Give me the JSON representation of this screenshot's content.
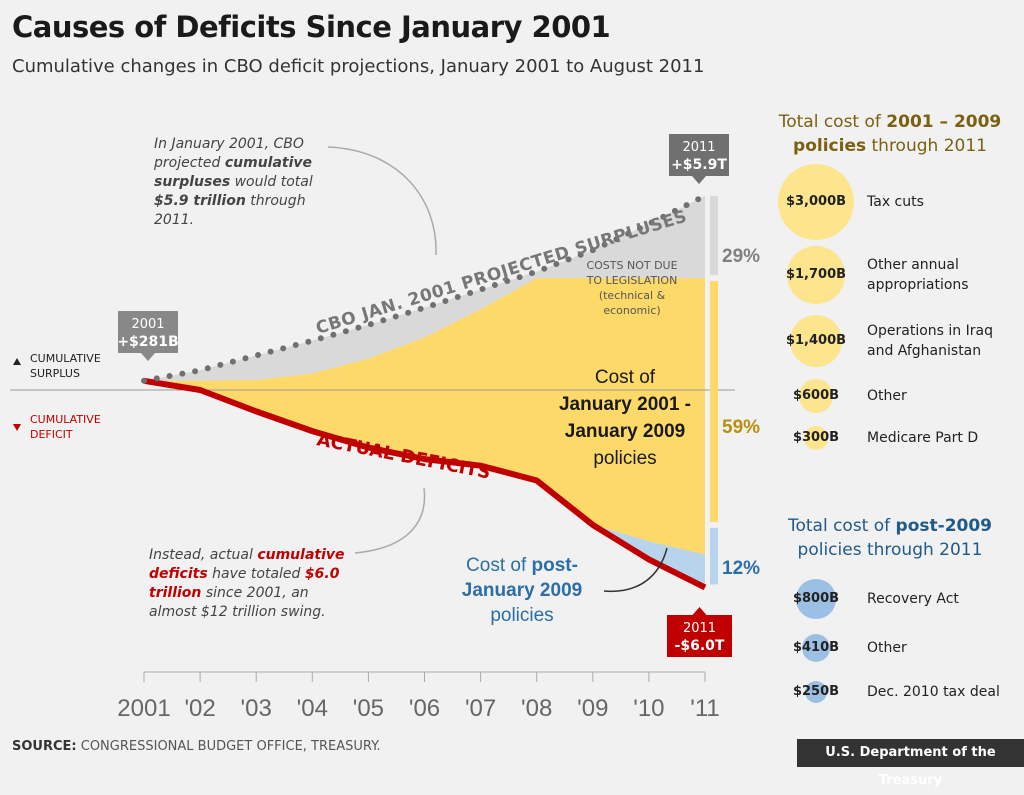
{
  "header": {
    "title": "Causes of Deficits Since January 2001",
    "subtitle": "Cumulative changes in CBO deficit projections, January 2001 to August 2011"
  },
  "footer": {
    "source_label": "SOURCE:",
    "source_text": "CONGRESSIONAL BUDGET OFFICE, TREASURY.",
    "org": "U.S. Department of the Treasury"
  },
  "colors": {
    "surplus_gray": "#d9d9d9",
    "gold": "#fcd969",
    "blue": "#b8d3ec",
    "red": "#c00000",
    "dots": "#707070",
    "bubble_gold": "#fde58e",
    "bubble_blue": "#9cc0e3"
  },
  "notes": {
    "top_lines": [
      "In January 2001, CBO",
      "projected {cumulative}",
      "{surpluses} would total",
      "{$5.9 trillion} through",
      "2011."
    ],
    "bottom_lines": [
      "Instead, actual {cumulative}",
      "{deficits} have totaled {$6.0}",
      "{trillion} since 2001, an",
      "almost $12 trillion swing."
    ]
  },
  "chart_data": {
    "type": "area",
    "x": [
      "2001",
      "'02",
      "'03",
      "'04",
      "'05",
      "'06",
      "'07",
      "'08",
      "'09",
      "'10",
      "'11"
    ],
    "series": [
      {
        "name": "CBO JAN. 2001 PROJECTED SURPLUSES",
        "values": [
          0.28,
          0.6,
          1.05,
          1.5,
          1.98,
          2.5,
          3.05,
          3.6,
          4.25,
          5.05,
          5.9
        ]
      },
      {
        "name": "ACTUAL DEFICITS",
        "values": [
          0.28,
          0.0,
          -0.65,
          -1.25,
          -1.75,
          -2.1,
          -2.3,
          -2.75,
          -4.1,
          -5.15,
          -6.0
        ]
      }
    ],
    "gold_top": [
      0.28,
      0.28,
      0.3,
      0.5,
      0.95,
      1.6,
      2.45,
      3.4,
      3.4,
      3.4,
      3.4
    ],
    "blue_top": [
      -4.1,
      -4.1,
      -4.1,
      -4.1,
      -4.1,
      -4.1,
      -4.1,
      -4.1,
      -4.1,
      -4.6,
      -5.0
    ],
    "ylim": [
      -6.5,
      6.5
    ],
    "start_label": {
      "year": "2001",
      "value": "+$281B"
    },
    "end_surplus_label": {
      "year": "2011",
      "value": "+$5.9T"
    },
    "end_deficit_label": {
      "year": "2011",
      "value": "-$6.0T"
    },
    "axis_labels": {
      "surplus": "CUMULATIVE SURPLUS",
      "deficit": "CUMULATIVE DEFICIT"
    },
    "series_labels": {
      "projected": "CBO JAN. 2001 PROJECTED SURPLUSES",
      "actual": "ACTUAL DEFICITS"
    },
    "costs_not_due": [
      "COSTS NOT DUE",
      "TO LEGISLATION",
      "(technical &",
      "economic)"
    ],
    "gold_label": [
      "Cost of",
      "January 2001 -",
      "January 2009",
      "policies"
    ],
    "blue_label": [
      "Cost of post-",
      "January 2009",
      "policies"
    ],
    "bar_segments": [
      {
        "name": "Costs not due to legislation",
        "percent": "29%",
        "color": "#d9d9d9"
      },
      {
        "name": "Cost of January 2001 - January 2009 policies",
        "percent": "59%",
        "color": "#fcd969"
      },
      {
        "name": "Cost of post-January 2009 policies",
        "percent": "12%",
        "color": "#b8d3ec"
      }
    ]
  },
  "panel_2001_2009": {
    "title_lines": [
      "Total cost of {2001 – 2009}",
      "{policies} through 2011"
    ],
    "items": [
      {
        "amount": "$3,000B",
        "value": 3000,
        "label": [
          "Tax cuts"
        ]
      },
      {
        "amount": "$1,700B",
        "value": 1700,
        "label": [
          "Other annual",
          "appropriations"
        ]
      },
      {
        "amount": "$1,400B",
        "value": 1400,
        "label": [
          "Operations in Iraq",
          "and Afghanistan"
        ]
      },
      {
        "amount": "$600B",
        "value": 600,
        "label": [
          "Other"
        ]
      },
      {
        "amount": "$300B",
        "value": 300,
        "label": [
          "Medicare Part D"
        ]
      }
    ]
  },
  "panel_post_2009": {
    "title_lines": [
      "Total cost of {post-2009}",
      "policies through 2011"
    ],
    "items": [
      {
        "amount": "$800B",
        "value": 800,
        "label": [
          "Recovery Act"
        ]
      },
      {
        "amount": "$410B",
        "value": 410,
        "label": [
          "Other"
        ]
      },
      {
        "amount": "$250B",
        "value": 250,
        "label": [
          "Dec. 2010 tax deal"
        ]
      }
    ]
  }
}
